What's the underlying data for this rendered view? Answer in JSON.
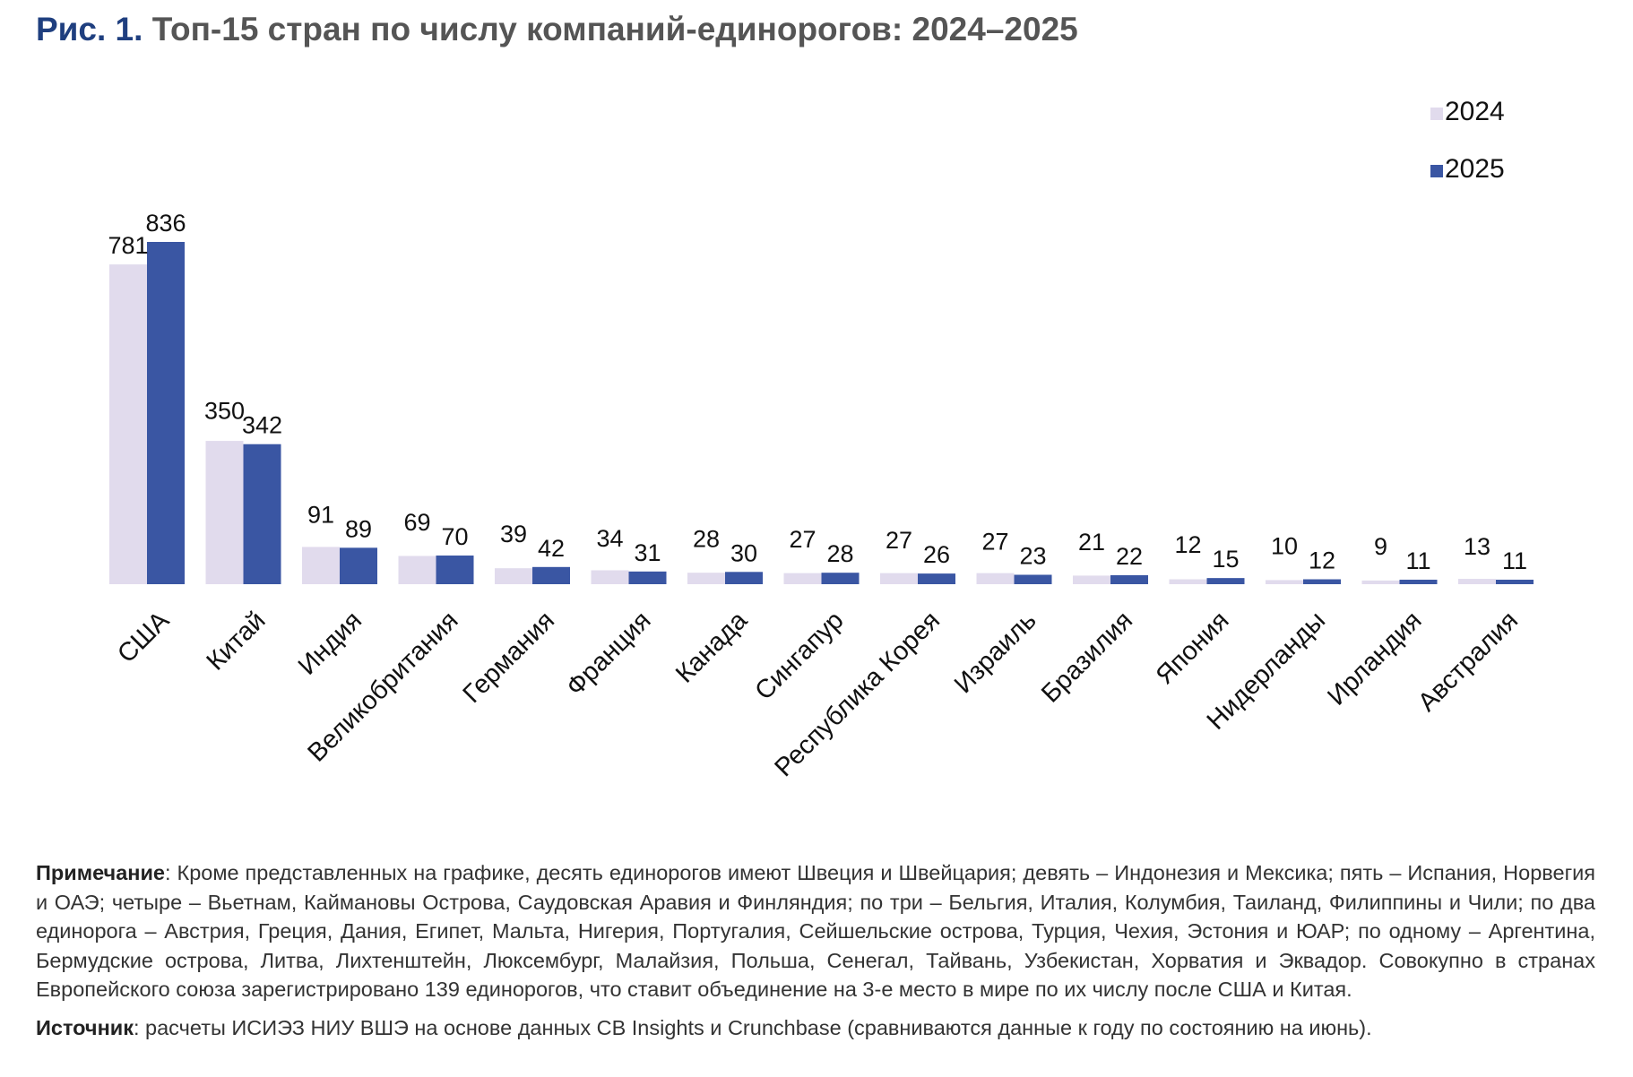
{
  "header": {
    "fig_label": "Рис. 1.",
    "title": "Топ-15 стран по числу компаний-единорогов: 2024–2025"
  },
  "colors": {
    "series_2024": "#e1dbed",
    "series_2025": "#3a56a3",
    "title_accent": "#1f3f7f"
  },
  "chart_data": {
    "type": "bar",
    "title": "Топ-15 стран по числу компаний-единорогов: 2024–2025",
    "xlabel": "",
    "ylabel": "",
    "ylim": [
      0,
      836
    ],
    "grid": false,
    "legend_position": "top-right",
    "categories": [
      "США",
      "Китай",
      "Индия",
      "Великобритания",
      "Германия",
      "Франция",
      "Канада",
      "Сингапур",
      "Республика Корея",
      "Израиль",
      "Бразилия",
      "Япония",
      "Нидерланды",
      "Ирландия",
      "Австралия"
    ],
    "series": [
      {
        "name": "2024",
        "values": [
          781,
          350,
          91,
          69,
          39,
          34,
          28,
          27,
          27,
          27,
          21,
          12,
          10,
          9,
          13
        ]
      },
      {
        "name": "2025",
        "values": [
          836,
          342,
          89,
          70,
          42,
          31,
          30,
          28,
          26,
          23,
          22,
          15,
          12,
          11,
          11
        ]
      }
    ]
  },
  "notes": {
    "note_label": "Примечание",
    "note_text": ": Кроме представленных на графике, десять единорогов имеют Швеция и Швейцария; девять – Индонезия и Мексика; пять – Испания, Норвегия и ОАЭ; четыре – Вьетнам, Каймановы Острова, Саудовская Аравия и Финляндия; по три – Бельгия, Италия, Колумбия, Таиланд, Филиппины и Чили; по два единорога – Австрия, Греция, Дания, Египет, Мальта, Нигерия, Португалия, Сейшельские острова, Турция, Чехия, Эстония и ЮАР; по одному – Аргентина, Бермудские острова, Литва, Лихтенштейн, Люксембург, Малайзия, Польша, Сенегал, Тайвань, Узбекистан, Хорватия и Эквадор. Совокупно в странах Европейского союза зарегистрировано 139 единорогов, что ставит объединение на 3-е место в мире по их числу после США и Китая.",
    "source_label": "Источник",
    "source_text": ": расчеты ИСИЭЗ НИУ ВШЭ на основе данных CB Insights и Crunchbase (сравниваются данные к году по состоянию на июнь)."
  }
}
